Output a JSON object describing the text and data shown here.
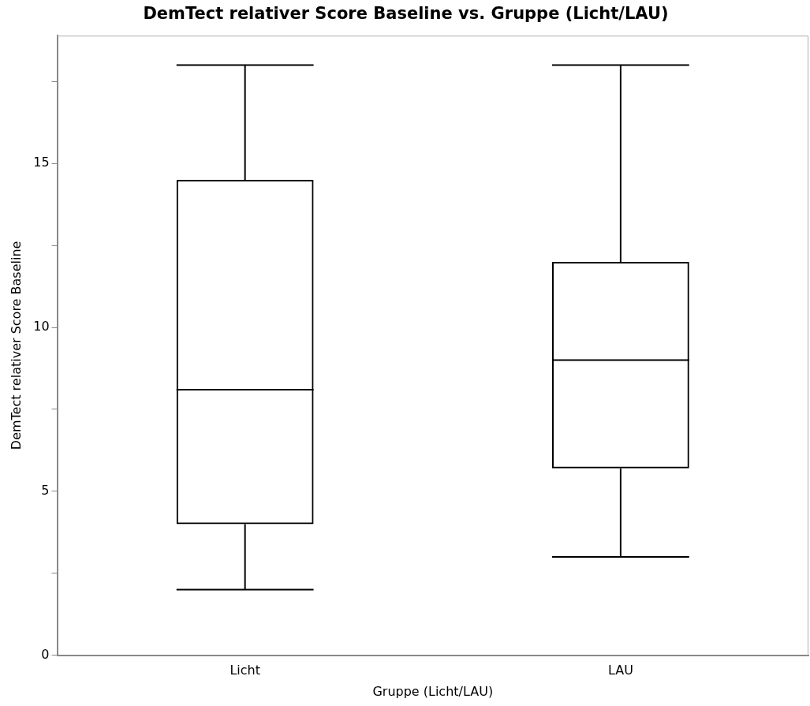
{
  "chart_data": {
    "type": "box",
    "title": "DemTect relativer Score Baseline vs. Gruppe (Licht/LAU)",
    "xlabel": "Gruppe (Licht/LAU)",
    "ylabel": "DemTect relativer Score Baseline",
    "categories": [
      "Licht",
      "LAU"
    ],
    "series": [
      {
        "color": "#000000",
        "boxes": [
          {
            "low": 2,
            "q1": 4,
            "median": 8.1,
            "q3": 14.5,
            "high": 18
          },
          {
            "low": 3,
            "q1": 5.7,
            "median": 9,
            "q3": 12,
            "high": 18
          }
        ]
      }
    ],
    "ylim": [
      0,
      18.9
    ],
    "yticks": [
      0,
      {
        "value": 2.5,
        "label": null
      },
      5,
      {
        "value": 7.5,
        "label": null
      },
      10,
      {
        "value": 12.5,
        "label": null
      },
      15,
      {
        "value": 17.5,
        "label": null
      }
    ]
  }
}
